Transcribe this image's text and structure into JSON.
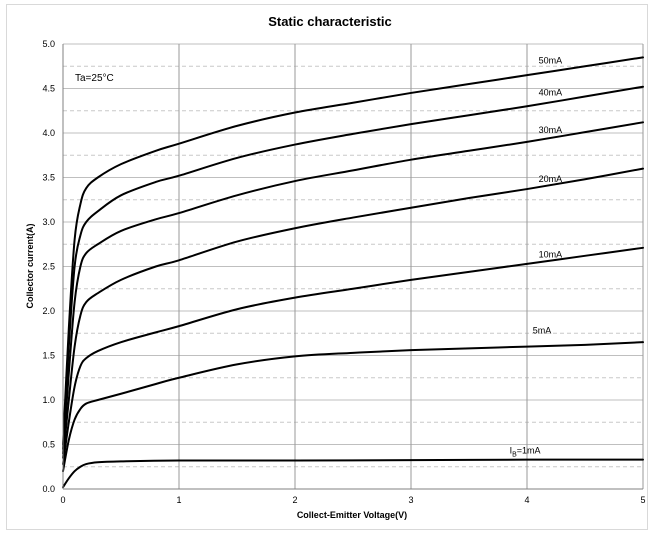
{
  "chart_data": {
    "type": "line",
    "title": "Static characteristic",
    "xlabel": "Collect-Emitter Voltage(V)",
    "ylabel": "Collector current(A)",
    "xlim": [
      0,
      5
    ],
    "ylim": [
      0,
      5
    ],
    "xticks": [
      "0",
      "1",
      "2",
      "3",
      "4",
      "5"
    ],
    "yticks": [
      "0.0",
      "0.5",
      "1.0",
      "1.5",
      "2.0",
      "2.5",
      "3.0",
      "3.5",
      "4.0",
      "4.5",
      "5.0"
    ],
    "grid": "major vertical solid, minor horizontal dashed",
    "annotation": "Ta=25°C",
    "series": [
      {
        "name": "50mA",
        "x": [
          0,
          0.05,
          0.1,
          0.15,
          0.2,
          0.3,
          0.5,
          0.8,
          1,
          1.5,
          2,
          2.5,
          3,
          3.5,
          4,
          4.5,
          5
        ],
        "y": [
          0.5,
          1.8,
          2.8,
          3.2,
          3.38,
          3.5,
          3.65,
          3.8,
          3.88,
          4.08,
          4.23,
          4.34,
          4.45,
          4.55,
          4.65,
          4.75,
          4.85
        ]
      },
      {
        "name": "40mA",
        "x": [
          0,
          0.05,
          0.1,
          0.15,
          0.2,
          0.3,
          0.5,
          0.8,
          1,
          1.5,
          2,
          2.5,
          3,
          3.5,
          4,
          4.5,
          5
        ],
        "y": [
          0.45,
          1.6,
          2.5,
          2.85,
          3.0,
          3.12,
          3.3,
          3.45,
          3.52,
          3.72,
          3.87,
          3.99,
          4.1,
          4.2,
          4.3,
          4.41,
          4.52
        ]
      },
      {
        "name": "30mA",
        "x": [
          0,
          0.05,
          0.1,
          0.15,
          0.2,
          0.3,
          0.5,
          0.8,
          1,
          1.5,
          2,
          2.5,
          3,
          3.5,
          4,
          4.5,
          5
        ],
        "y": [
          0.4,
          1.3,
          2.1,
          2.5,
          2.65,
          2.75,
          2.9,
          3.03,
          3.1,
          3.3,
          3.46,
          3.58,
          3.7,
          3.8,
          3.9,
          4.01,
          4.12
        ]
      },
      {
        "name": "20mA",
        "x": [
          0,
          0.05,
          0.1,
          0.15,
          0.2,
          0.3,
          0.5,
          0.8,
          1,
          1.5,
          2,
          2.5,
          3,
          3.5,
          4,
          4.5,
          5
        ],
        "y": [
          0.35,
          1.0,
          1.6,
          1.95,
          2.1,
          2.2,
          2.35,
          2.5,
          2.57,
          2.78,
          2.93,
          3.05,
          3.16,
          3.27,
          3.37,
          3.48,
          3.6
        ]
      },
      {
        "name": "10mA",
        "x": [
          0,
          0.05,
          0.1,
          0.15,
          0.2,
          0.3,
          0.5,
          0.8,
          1,
          1.5,
          2,
          2.5,
          3,
          3.5,
          4,
          4.5,
          5
        ],
        "y": [
          0.28,
          0.75,
          1.15,
          1.38,
          1.47,
          1.55,
          1.65,
          1.76,
          1.83,
          2.02,
          2.15,
          2.25,
          2.35,
          2.44,
          2.53,
          2.62,
          2.71
        ]
      },
      {
        "name": "5mA",
        "x": [
          0,
          0.05,
          0.1,
          0.15,
          0.2,
          0.3,
          0.5,
          0.8,
          1,
          1.5,
          2,
          2.5,
          3,
          3.5,
          4,
          4.5,
          5
        ],
        "y": [
          0.2,
          0.55,
          0.78,
          0.9,
          0.96,
          1.0,
          1.07,
          1.18,
          1.25,
          1.4,
          1.49,
          1.53,
          1.56,
          1.58,
          1.6,
          1.62,
          1.65
        ]
      },
      {
        "name": "I<sub>B</sub>=1mA",
        "label": "IB=1mA",
        "x": [
          0,
          0.05,
          0.1,
          0.15,
          0.2,
          0.3,
          0.5,
          1,
          2,
          3,
          4,
          5
        ],
        "y": [
          0.02,
          0.12,
          0.2,
          0.25,
          0.28,
          0.3,
          0.31,
          0.32,
          0.32,
          0.325,
          0.33,
          0.33
        ]
      }
    ],
    "series_label_positions": [
      {
        "label": "50mA",
        "x": 4.1,
        "y": 4.78
      },
      {
        "label": "40mA",
        "x": 4.1,
        "y": 4.42
      },
      {
        "label": "30mA",
        "x": 4.1,
        "y": 4.0
      },
      {
        "label": "20mA",
        "x": 4.1,
        "y": 3.45
      },
      {
        "label": "10mA",
        "x": 4.1,
        "y": 2.6
      },
      {
        "label": "5mA",
        "x": 4.05,
        "y": 1.75
      },
      {
        "label": "IB=1mA",
        "x": 3.85,
        "y": 0.4
      }
    ]
  }
}
